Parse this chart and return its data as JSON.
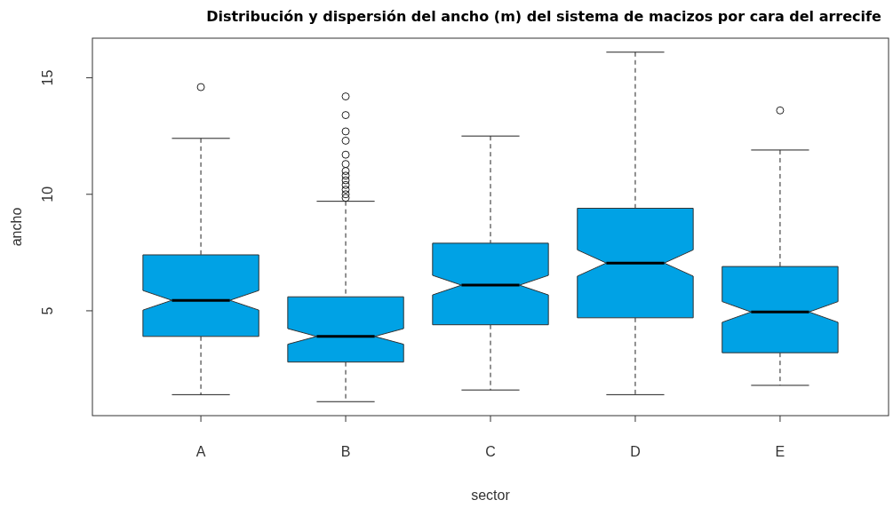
{
  "chart_data": {
    "type": "box",
    "title": "Distribución y dispersión del ancho (m) del sistema de macizos por cara del arrecife",
    "xlabel": "sector",
    "ylabel": "ancho",
    "categories": [
      "A",
      "B",
      "C",
      "D",
      "E"
    ],
    "color": "#00a2e5",
    "boxes": [
      {
        "low": 1.4,
        "q1": 3.9,
        "median": 5.45,
        "q3": 7.4,
        "high": 12.4,
        "outliers": [
          14.6
        ]
      },
      {
        "low": 1.1,
        "q1": 2.8,
        "median": 3.9,
        "q3": 5.6,
        "high": 9.7,
        "outliers": [
          14.2,
          13.4,
          12.7,
          12.3,
          11.7,
          11.3,
          11.0,
          10.8,
          10.6,
          10.4,
          10.2,
          10.0,
          9.85
        ]
      },
      {
        "low": 1.6,
        "q1": 4.4,
        "median": 6.1,
        "q3": 7.9,
        "high": 12.5
      },
      {
        "low": 1.4,
        "q1": 4.7,
        "median": 7.05,
        "q3": 9.4,
        "high": 16.1
      },
      {
        "low": 1.8,
        "q1": 3.2,
        "median": 4.95,
        "q3": 6.9,
        "high": 11.9,
        "outliers": [
          13.6
        ]
      }
    ],
    "ylim": [
      0.5,
      16.7
    ],
    "yticks": [
      5,
      10,
      15
    ],
    "grid": false
  }
}
